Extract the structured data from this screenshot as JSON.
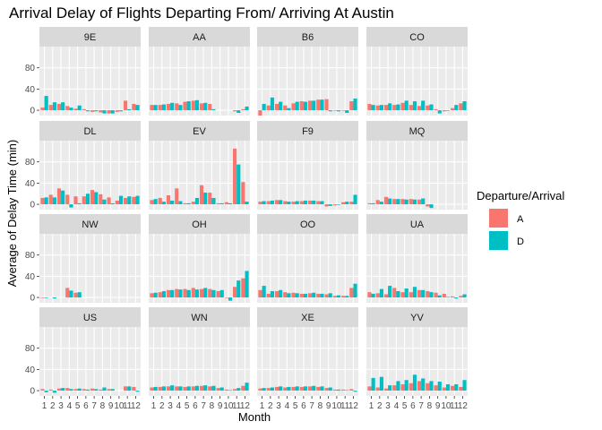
{
  "colors": {
    "A": "#F8766D",
    "D": "#00BFC4",
    "panel_bg": "#EBEBEB",
    "strip_bg": "#D9D9D9",
    "grid": "#FFFFFF",
    "axis_text": "#4D4D4D"
  },
  "chart_data": {
    "type": "bar",
    "title": "Arrival Delay of Flights Departing From/ Arriving At Austin",
    "xlabel": "Month",
    "ylabel": "Average of Delay Time (min)",
    "legend_title": "Departure/Arrival",
    "legend_position": "right",
    "ylim": [
      -10,
      120
    ],
    "y_ticks": [
      0,
      40,
      80
    ],
    "x_ticks": [
      "1",
      "2",
      "3",
      "4",
      "5",
      "6",
      "7",
      "8",
      "9",
      "10",
      "11",
      "12"
    ],
    "grid": true,
    "series_names": [
      "A",
      "D"
    ],
    "panels": [
      {
        "name": "9E",
        "A": [
          5,
          10,
          12,
          8,
          3,
          2,
          -3,
          -4,
          -6,
          -3,
          18,
          12
        ],
        "D": [
          27,
          15,
          15,
          5,
          9,
          -2,
          -2,
          -6,
          -6,
          -2,
          2,
          10
        ]
      },
      {
        "name": "AA",
        "A": [
          10,
          10,
          12,
          13,
          16,
          18,
          13,
          12,
          null,
          null,
          -2,
          2
        ],
        "D": [
          10,
          11,
          14,
          10,
          17,
          19,
          14,
          2,
          null,
          null,
          -5,
          7
        ]
      },
      {
        "name": "B6",
        "A": [
          -10,
          9,
          12,
          9,
          13,
          17,
          18,
          20,
          21,
          -1,
          0,
          17
        ],
        "D": [
          12,
          24,
          16,
          4,
          16,
          16,
          18,
          20,
          -2,
          -2,
          -5,
          22
        ]
      },
      {
        "name": "CO",
        "A": [
          12,
          9,
          10,
          10,
          14,
          10,
          8,
          9,
          2,
          -2,
          4,
          13
        ],
        "D": [
          10,
          10,
          13,
          11,
          18,
          17,
          18,
          11,
          -6,
          0,
          10,
          17
        ]
      },
      {
        "name": "DL",
        "A": [
          12,
          18,
          30,
          18,
          15,
          15,
          27,
          19,
          13,
          7,
          12,
          14
        ],
        "D": [
          13,
          13,
          26,
          -6,
          2,
          20,
          23,
          9,
          2,
          16,
          15,
          16
        ]
      },
      {
        "name": "EV",
        "A": [
          8,
          12,
          17,
          30,
          2,
          5,
          36,
          22,
          2,
          4,
          105,
          42
        ],
        "D": [
          10,
          5,
          7,
          6,
          2,
          12,
          22,
          12,
          2,
          2,
          75,
          5
        ]
      },
      {
        "name": "F9",
        "A": [
          5,
          6,
          8,
          6,
          5,
          6,
          7,
          6,
          -4,
          -2,
          4,
          5
        ],
        "D": [
          6,
          7,
          8,
          5,
          6,
          7,
          7,
          6,
          -3,
          -1,
          5,
          18
        ]
      },
      {
        "name": "MQ",
        "A": [
          2,
          8,
          14,
          10,
          10,
          10,
          9,
          -4,
          null,
          null,
          null,
          null
        ],
        "D": [
          2,
          5,
          11,
          10,
          9,
          9,
          11,
          -7,
          null,
          null,
          null,
          null
        ]
      },
      {
        "name": "NW",
        "A": [
          0,
          null,
          null,
          18,
          9,
          null,
          null,
          null,
          null,
          null,
          null,
          null
        ],
        "D": [
          0,
          -2,
          null,
          13,
          10,
          null,
          null,
          null,
          null,
          null,
          null,
          null
        ]
      },
      {
        "name": "OH",
        "A": [
          8,
          10,
          14,
          16,
          16,
          18,
          16,
          16,
          12,
          0,
          20,
          36
        ],
        "D": [
          9,
          12,
          14,
          15,
          14,
          15,
          18,
          14,
          14,
          -6,
          32,
          50
        ]
      },
      {
        "name": "OO",
        "A": [
          14,
          7,
          12,
          10,
          9,
          7,
          8,
          7,
          6,
          3,
          3,
          18
        ],
        "D": [
          22,
          12,
          14,
          8,
          8,
          7,
          9,
          7,
          8,
          4,
          3,
          26
        ]
      },
      {
        "name": "UA",
        "A": [
          10,
          8,
          6,
          18,
          10,
          10,
          14,
          12,
          9,
          7,
          2,
          3
        ],
        "D": [
          7,
          16,
          22,
          12,
          17,
          20,
          14,
          10,
          4,
          1,
          -2,
          6
        ]
      },
      {
        "name": "US",
        "A": [
          3,
          2,
          4,
          5,
          3,
          3,
          4,
          2,
          3,
          null,
          8,
          7
        ],
        "D": [
          -3,
          -4,
          5,
          3,
          4,
          2,
          3,
          6,
          3,
          null,
          8,
          -2
        ]
      },
      {
        "name": "WN",
        "A": [
          6,
          7,
          8,
          8,
          7,
          8,
          9,
          8,
          5,
          2,
          3,
          9
        ],
        "D": [
          7,
          8,
          10,
          8,
          8,
          9,
          10,
          9,
          6,
          1,
          5,
          15
        ]
      },
      {
        "name": "XE",
        "A": [
          4,
          5,
          7,
          6,
          7,
          7,
          8,
          7,
          5,
          2,
          2,
          3
        ],
        "D": [
          5,
          6,
          8,
          7,
          8,
          8,
          9,
          8,
          6,
          2,
          1,
          -2
        ]
      },
      {
        "name": "YV",
        "A": [
          8,
          6,
          4,
          10,
          12,
          14,
          18,
          14,
          10,
          6,
          9,
          7
        ],
        "D": [
          24,
          26,
          10,
          18,
          20,
          30,
          23,
          18,
          17,
          12,
          12,
          20
        ]
      }
    ]
  }
}
